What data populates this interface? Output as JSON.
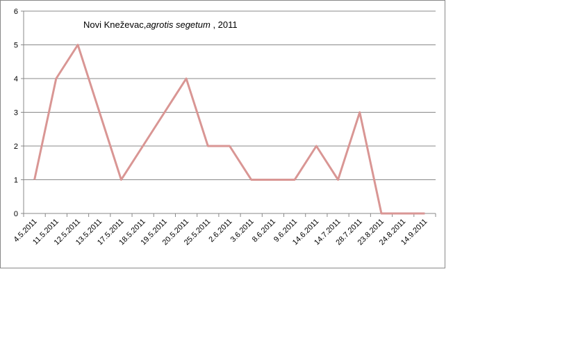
{
  "chart_data": {
    "type": "line",
    "title_parts": [
      "Novi Kneževac,",
      "agrotis segetum",
      " , 2011"
    ],
    "categories": [
      "4.5.2011",
      "11.5.2011",
      "12.5.2011",
      "13.5.2011",
      "17.5.2011",
      "18.5.2011",
      "19.5.2011",
      "20.5.2011",
      "25.5.2011",
      "2.6.2011",
      "3.6.2011",
      "8.6.2011",
      "9.6.2011",
      "14.6.2011",
      "14.7.2011",
      "28.7.2011",
      "23.8.2011",
      "24.8.2011",
      "14.9.2011"
    ],
    "values": [
      1,
      4,
      5,
      3,
      1,
      2,
      3,
      4,
      2,
      2,
      1,
      1,
      1,
      2,
      1,
      3,
      0,
      0,
      0
    ],
    "color": "#d99694",
    "ylim": [
      0,
      6
    ],
    "yticks": [
      0,
      1,
      2,
      3,
      4,
      5,
      6
    ],
    "grid": true
  }
}
